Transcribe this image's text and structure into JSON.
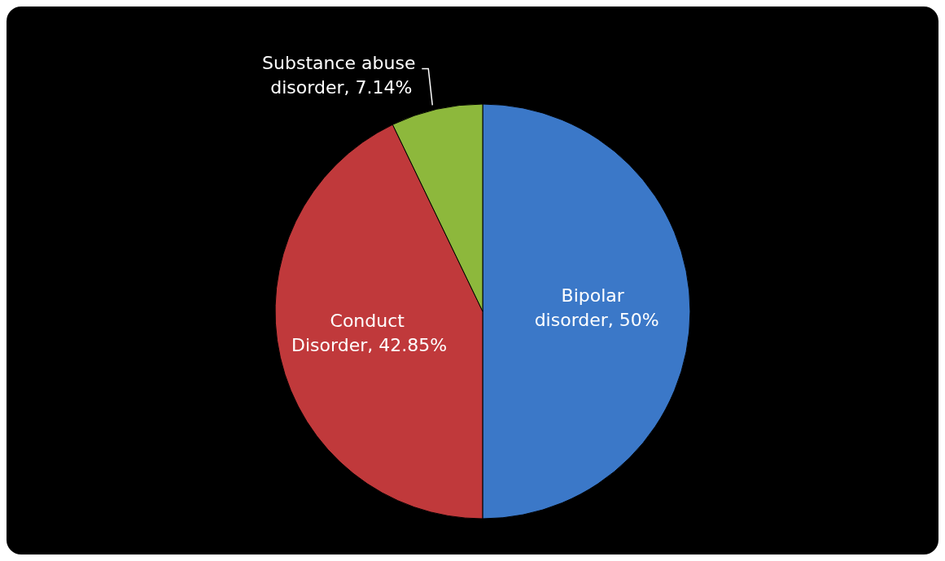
{
  "chart_data": {
    "type": "pie",
    "categories": [
      "Bipolar disorder",
      "Conduct Disorder",
      "Substance abuse disorder"
    ],
    "values": [
      50,
      42.85,
      7.14
    ],
    "value_labels": [
      ", 50%",
      ", 42.85%",
      ", 7.14%"
    ],
    "colors": [
      "#3b78c8",
      "#c0393b",
      "#8db83c"
    ],
    "legend": false
  }
}
